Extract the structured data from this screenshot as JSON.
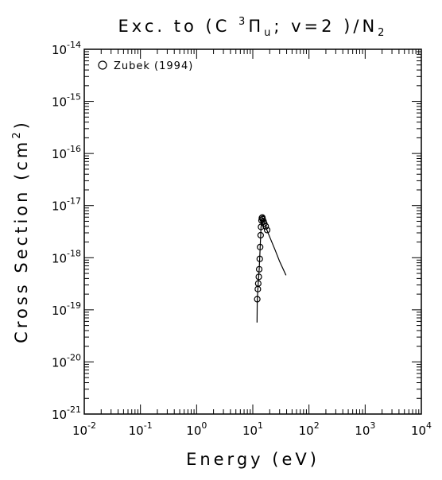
{
  "chart_data": {
    "type": "scatter",
    "title": [
      "Exc. to (C ",
      "3",
      "Π",
      "u",
      "; v=2 )/N",
      "2"
    ],
    "x_label": "Energy (eV)",
    "y_label": [
      "Cross Section (cm",
      "2",
      ")"
    ],
    "log_x": true,
    "log_y": true,
    "xlim": [
      0.01,
      10000
    ],
    "ylim": [
      1e-21,
      1e-14
    ],
    "xticks": [
      {
        "value": 0.01,
        "label": "10",
        "exponent": "-2"
      },
      {
        "value": 0.1,
        "label": "10",
        "exponent": "-1"
      },
      {
        "value": 1,
        "label": "10",
        "exponent": "0"
      },
      {
        "value": 10,
        "label": "10",
        "exponent": "1"
      },
      {
        "value": 100,
        "label": "10",
        "exponent": "2"
      },
      {
        "value": 1000,
        "label": "10",
        "exponent": "3"
      },
      {
        "value": 10000,
        "label": "10",
        "exponent": "4"
      }
    ],
    "yticks": [
      {
        "value": 1e-21,
        "label": "10",
        "exponent": "-21"
      },
      {
        "value": 1e-20,
        "label": "10",
        "exponent": "-20"
      },
      {
        "value": 1e-19,
        "label": "10",
        "exponent": "-19"
      },
      {
        "value": 1e-18,
        "label": "10",
        "exponent": "-18"
      },
      {
        "value": 1e-17,
        "label": "10",
        "exponent": "-17"
      },
      {
        "value": 1e-16,
        "label": "10",
        "exponent": "-16"
      },
      {
        "value": 1e-15,
        "label": "10",
        "exponent": "-15"
      },
      {
        "value": 1e-14,
        "label": "10",
        "exponent": "-14"
      }
    ],
    "legend_position": "upper left",
    "series": [
      {
        "name": "Zubek (1994)",
        "color": "#000000",
        "marker": "circle",
        "x": [
          12.0,
          12.3,
          12.5,
          12.8,
          13.0,
          13.3,
          13.5,
          13.8,
          14.0,
          14.3,
          14.5,
          14.8,
          15.0,
          15.5,
          16.0,
          17.0,
          18.0
        ],
        "values": [
          1.6e-19,
          2.5e-19,
          3.2e-19,
          4.3e-19,
          6e-19,
          9.5e-19,
          1.6e-18,
          2.7e-18,
          3.9e-18,
          5.2e-18,
          5.8e-18,
          5.9e-18,
          5.5e-18,
          5e-18,
          4.5e-18,
          4e-18,
          3.4e-18
        ]
      },
      {
        "color": "#000000",
        "marker": "line",
        "x": [
          11.9,
          12.0,
          12.5,
          13.0,
          13.5,
          14.0,
          14.5,
          15.0,
          16.0,
          18.0,
          20.0,
          25.0,
          30.0,
          39.0
        ],
        "values": [
          5.7e-20,
          1.5e-19,
          3.3e-19,
          6e-19,
          1.5e-18,
          3.8e-18,
          5.6e-18,
          5.8e-18,
          4.8e-18,
          3.3e-18,
          2.5e-18,
          1.4e-18,
          8.5e-19,
          4.6e-19
        ]
      }
    ]
  }
}
